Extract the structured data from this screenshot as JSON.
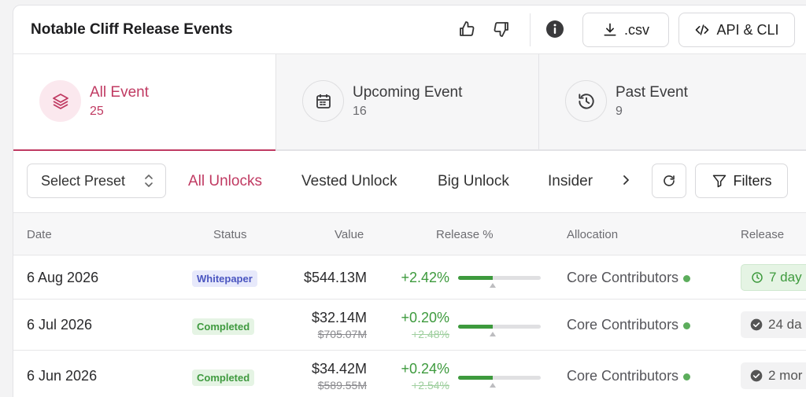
{
  "header": {
    "title": "Notable Cliff Release Events",
    "csv_label": ".csv",
    "api_label": "API & CLI"
  },
  "tabs": [
    {
      "label": "All Event",
      "count": "25",
      "icon": "layers-icon",
      "active": true
    },
    {
      "label": "Upcoming Event",
      "count": "16",
      "icon": "calendar-icon",
      "active": false
    },
    {
      "label": "Past Event",
      "count": "9",
      "icon": "history-icon",
      "active": false
    }
  ],
  "filterbar": {
    "preset_placeholder": "Select Preset",
    "chips": [
      "All Unlocks",
      "Vested Unlock",
      "Big Unlock",
      "Insider"
    ],
    "filters_label": "Filters"
  },
  "table": {
    "headers": {
      "date": "Date",
      "status": "Status",
      "value": "Value",
      "release_pct": "Release %",
      "allocation": "Allocation",
      "release": "Release"
    },
    "rows": [
      {
        "date": "6 Aug 2026",
        "status": "Whitepaper",
        "value": "$544.13M",
        "old_value": "",
        "release_pct": "+2.42%",
        "old_release_pct": "",
        "progress": 0.42,
        "allocation": "Core Contributors",
        "release": "7 day",
        "release_state": "upcoming"
      },
      {
        "date": "6 Jul 2026",
        "status": "Completed",
        "value": "$32.14M",
        "old_value": "$705.07M",
        "release_pct": "+0.20%",
        "old_release_pct": "+2.48%",
        "progress": 0.42,
        "allocation": "Core Contributors",
        "release": "24 da",
        "release_state": "past"
      },
      {
        "date": "6 Jun 2026",
        "status": "Completed",
        "value": "$34.42M",
        "old_value": "$589.55M",
        "release_pct": "+0.24%",
        "old_release_pct": "+2.54%",
        "progress": 0.42,
        "allocation": "Core Contributors",
        "release": "2 mor",
        "release_state": "past"
      }
    ]
  },
  "colors": {
    "accent": "#c03a62",
    "positive": "#3d9a3d",
    "whitepaper_badge": "#4a55c0"
  }
}
